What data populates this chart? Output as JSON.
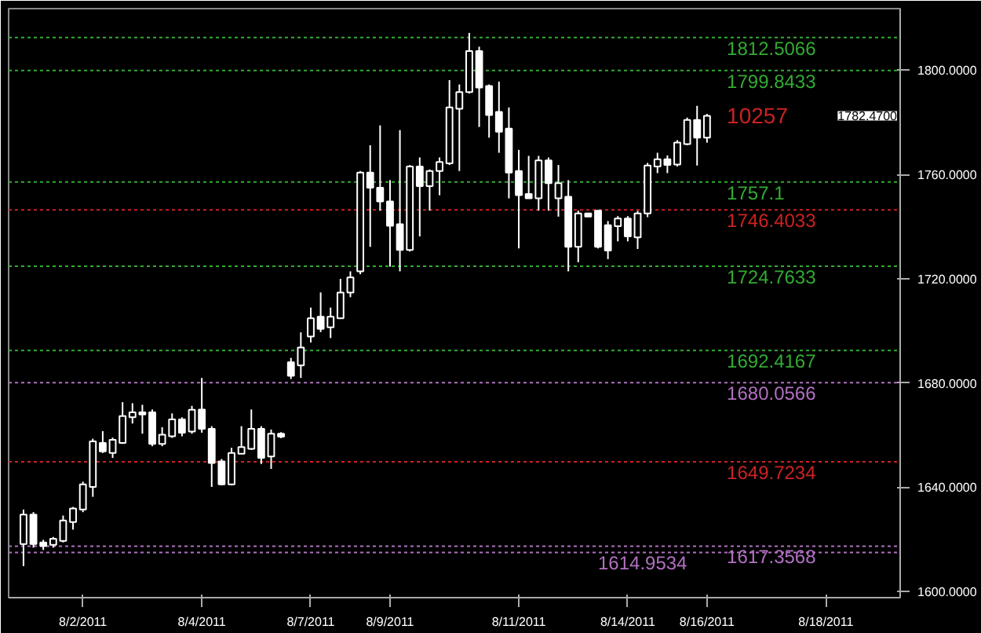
{
  "chart_data": {
    "type": "candlestick",
    "categories": [
      null,
      null,
      null,
      null,
      null,
      null,
      "8/2/2011",
      null,
      null,
      null,
      null,
      null,
      null,
      null,
      null,
      null,
      null,
      null,
      "8/4/2011",
      null,
      null,
      null,
      null,
      null,
      null,
      null,
      null,
      null,
      null,
      "8/7/2011",
      null,
      null,
      null,
      null,
      null,
      null,
      null,
      "8/9/2011",
      null,
      null,
      null,
      null,
      null,
      null,
      null,
      null,
      null,
      null,
      null,
      null,
      "8/11/2011",
      null,
      null,
      null,
      null,
      null,
      null,
      null,
      null,
      null,
      null,
      "8/14/2011",
      null,
      null,
      null,
      null,
      null,
      null,
      null,
      "8/16/2011",
      null,
      null,
      null,
      null,
      null,
      null,
      null,
      null,
      null,
      null,
      null,
      "8/18/2011",
      null,
      null,
      null,
      null,
      null,
      null,
      null
    ],
    "ohlc": [
      [
        1618.2,
        1631.4,
        1609.7,
        1629.5
      ],
      [
        1629.5,
        1630.4,
        1616.8,
        1618.2
      ],
      [
        1618.8,
        1619.8,
        1615.9,
        1617.4
      ],
      [
        1617.9,
        1620.9,
        1616.8,
        1620.2
      ],
      [
        1619.4,
        1629.1,
        1618.8,
        1627.2
      ],
      [
        1626.6,
        1632.4,
        1623.7,
        1631.8
      ],
      [
        1631.4,
        1642.1,
        1630.4,
        1641.1
      ],
      [
        1640.1,
        1658.6,
        1636.3,
        1657.6
      ],
      [
        1657.0,
        1661.5,
        1653.1,
        1653.7
      ],
      [
        1653.1,
        1659.0,
        1651.2,
        1658.2
      ],
      [
        1657.0,
        1672.6,
        1656.6,
        1667.3
      ],
      [
        1666.8,
        1672.2,
        1664.4,
        1668.7
      ],
      [
        1668.7,
        1671.6,
        1660.5,
        1667.9
      ],
      [
        1668.7,
        1669.8,
        1655.7,
        1656.6
      ],
      [
        1656.6,
        1663.0,
        1655.7,
        1660.1
      ],
      [
        1659.5,
        1668.3,
        1658.9,
        1666.0
      ],
      [
        1666.0,
        1666.8,
        1659.5,
        1660.9
      ],
      [
        1661.3,
        1671.2,
        1660.5,
        1669.7
      ],
      [
        1669.8,
        1681.9,
        1660.9,
        1662.4
      ],
      [
        1662.4,
        1663.4,
        1640.1,
        1649.3
      ],
      [
        1649.9,
        1650.8,
        1640.7,
        1641.1
      ],
      [
        1641.1,
        1655.1,
        1640.7,
        1653.1
      ],
      [
        1652.8,
        1663.4,
        1652.8,
        1655.4
      ],
      [
        1654.7,
        1669.8,
        1654.3,
        1662.4
      ],
      [
        1662.4,
        1663.4,
        1648.9,
        1651.2
      ],
      [
        1651.8,
        1662.1,
        1647.0,
        1660.5
      ],
      [
        1660.5,
        1661.1,
        1658.8,
        1659.4
      ],
      [
        1687.9,
        1689.6,
        1681.5,
        1682.7
      ],
      [
        1686.7,
        1699.4,
        1681.9,
        1693.6
      ],
      [
        1697.8,
        1708.9,
        1695.5,
        1704.8
      ],
      [
        1705.4,
        1714.7,
        1699.5,
        1700.7
      ],
      [
        1701.3,
        1708.9,
        1697.2,
        1705.4
      ],
      [
        1704.8,
        1719.9,
        1704.8,
        1714.7
      ],
      [
        1714.7,
        1722.8,
        1712.9,
        1720.5
      ],
      [
        1722.8,
        1761.3,
        1721.7,
        1760.7
      ],
      [
        1760.7,
        1771.2,
        1732.2,
        1754.9
      ],
      [
        1754.9,
        1778.8,
        1746.1,
        1749.6
      ],
      [
        1749.6,
        1757.8,
        1724.6,
        1740.3
      ],
      [
        1740.9,
        1777.0,
        1722.8,
        1731.0
      ],
      [
        1731.0,
        1763.6,
        1730.4,
        1763.0
      ],
      [
        1763.0,
        1766.5,
        1736.2,
        1755.5
      ],
      [
        1755.5,
        1761.9,
        1746.1,
        1761.3
      ],
      [
        1761.3,
        1766.5,
        1752.0,
        1764.8
      ],
      [
        1764.2,
        1796.2,
        1763.6,
        1785.7
      ],
      [
        1785.2,
        1794.5,
        1761.3,
        1791.6
      ],
      [
        1791.6,
        1814.3,
        1791.0,
        1807.3
      ],
      [
        1807.3,
        1809.0,
        1778.2,
        1793.3
      ],
      [
        1793.9,
        1794.5,
        1774.1,
        1782.8
      ],
      [
        1784.0,
        1795.6,
        1768.3,
        1776.4
      ],
      [
        1777.6,
        1785.7,
        1750.8,
        1760.7
      ],
      [
        1761.3,
        1769.4,
        1731.6,
        1752.0
      ],
      [
        1752.5,
        1767.1,
        1750.8,
        1750.8
      ],
      [
        1750.8,
        1767.1,
        1746.1,
        1765.4
      ],
      [
        1765.4,
        1766.5,
        1746.1,
        1756.6
      ],
      [
        1750.8,
        1763.6,
        1743.8,
        1756.6
      ],
      [
        1751.4,
        1757.8,
        1722.8,
        1732.2
      ],
      [
        1732.2,
        1746.1,
        1726.3,
        1745.0
      ],
      [
        1745.0,
        1745.0,
        1743.8,
        1743.8
      ],
      [
        1746.1,
        1746.1,
        1731.6,
        1732.2
      ],
      [
        1740.5,
        1742.1,
        1727.5,
        1730.8
      ],
      [
        1740.1,
        1744.0,
        1734.3,
        1743.1
      ],
      [
        1743.1,
        1744.0,
        1734.3,
        1736.2
      ],
      [
        1735.8,
        1746.0,
        1731.4,
        1745.0
      ],
      [
        1745.0,
        1764.4,
        1743.6,
        1763.4
      ],
      [
        1763.0,
        1768.3,
        1760.5,
        1765.8
      ],
      [
        1765.8,
        1767.3,
        1760.5,
        1763.6
      ],
      [
        1763.8,
        1773.1,
        1763.0,
        1772.2
      ],
      [
        1771.6,
        1781.8,
        1771.2,
        1780.9
      ],
      [
        1780.9,
        1786.3,
        1763.4,
        1774.1
      ],
      [
        1774.1,
        1783.2,
        1772.2,
        1782.47
      ],
      null,
      null,
      null,
      null,
      null,
      null,
      null,
      null,
      null,
      null,
      null,
      null,
      null,
      null,
      null,
      null,
      null,
      null,
      null
    ],
    "ylim": [
      1597.6,
      1823.6
    ],
    "yticks": [
      {
        "value": 1600,
        "label": "1600.0000"
      },
      {
        "value": 1640,
        "label": "1640.0000"
      },
      {
        "value": 1680,
        "label": "1680.0000"
      },
      {
        "value": 1720,
        "label": "1720.0000"
      },
      {
        "value": 1760,
        "label": "1760.0000"
      },
      {
        "value": 1800,
        "label": "1800.0000"
      }
    ],
    "ref_lines": [
      {
        "axis": "y",
        "value": 1812.5066,
        "label": "1812.5066",
        "color": "#33aa33",
        "line_style": "dotted"
      },
      {
        "axis": "y",
        "value": 1799.8433,
        "label": "1799.8433",
        "color": "#33aa33",
        "line_style": "dotted"
      },
      {
        "axis": "y",
        "value": 1757.1,
        "label": "1757.1",
        "color": "#33aa33",
        "line_style": "dotted"
      },
      {
        "axis": "y",
        "value": 1746.4033,
        "label": "1746.4033",
        "color": "#cc2222",
        "line_style": "dotted"
      },
      {
        "axis": "y",
        "value": 1724.7633,
        "label": "1724.7633",
        "color": "#33aa33",
        "line_style": "dotted"
      },
      {
        "axis": "y",
        "value": 1692.4167,
        "label": "1692.4167",
        "color": "#33aa33",
        "line_style": "dotted"
      },
      {
        "axis": "y",
        "value": 1680.0566,
        "label": "1680.0566",
        "color": "#b070c0",
        "line_style": "dotted"
      },
      {
        "axis": "y",
        "value": 1649.7234,
        "label": "1649.7234",
        "color": "#cc2222",
        "line_style": "dotted"
      },
      {
        "axis": "y",
        "value": 1617.3568,
        "label": "1617.3568",
        "color": "#b070c0",
        "line_style": "dotted"
      },
      {
        "axis": "y",
        "value": 1614.9534,
        "label": "1614.9534",
        "color": "#b070c0",
        "line_style": "dotted"
      }
    ],
    "annotations": [
      "1782.4700",
      "10257"
    ],
    "grid": false
  }
}
